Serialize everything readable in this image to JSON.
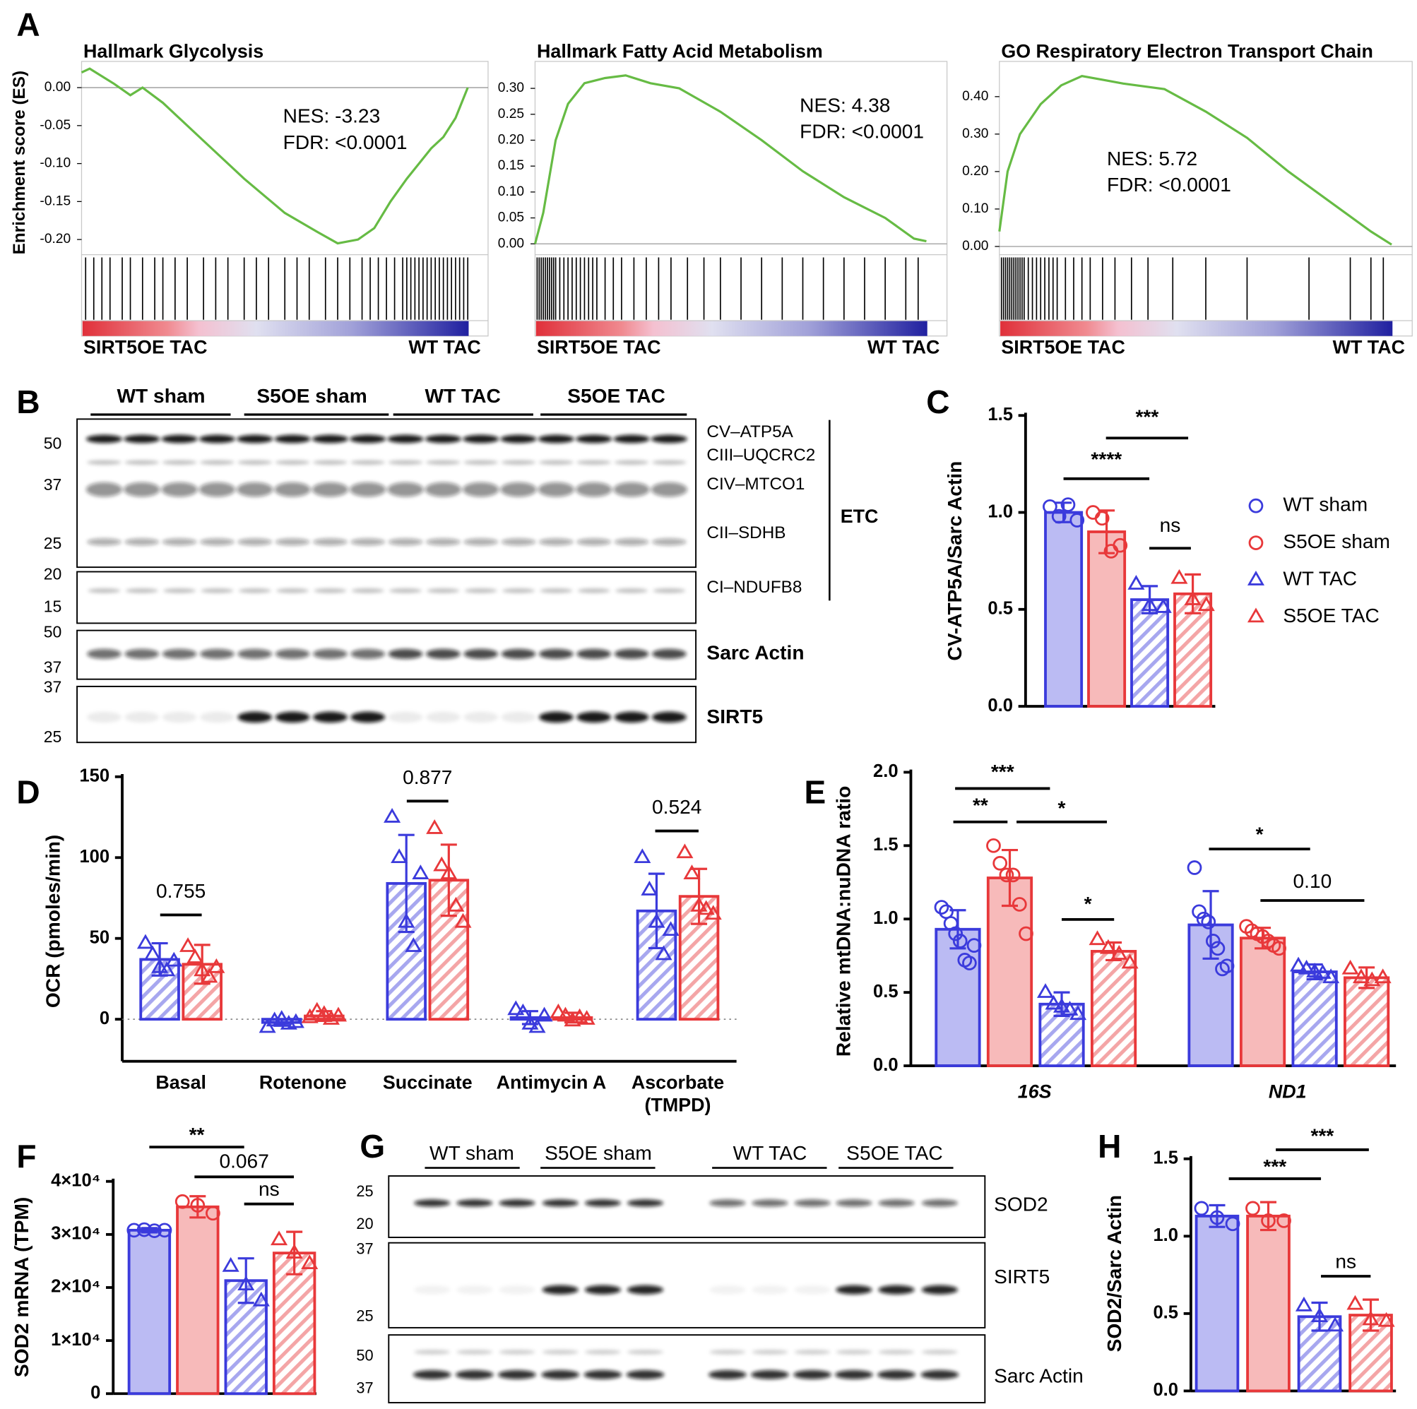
{
  "panel_labels": [
    "A",
    "B",
    "C",
    "D",
    "E",
    "F",
    "G",
    "H"
  ],
  "chart_data": [
    {
      "type": "gsea",
      "title": "Hallmark Glycolysis",
      "y_label": "Enrichment score (ES)",
      "annotations": [
        "NES: -3.23",
        "FDR: <0.0001"
      ],
      "left_label": "SIRT5OE TAC",
      "right_label": "WT TAC",
      "color": "#66bb44",
      "xlim": [
        0,
        1
      ],
      "ylim": [
        -0.22,
        0.0345
      ],
      "yticks": [
        {
          "value": 0,
          "label": "0.00"
        },
        {
          "value": -0.05,
          "label": "-0.05"
        },
        {
          "value": -0.1,
          "label": "-0.10"
        },
        {
          "value": -0.15,
          "label": "-0.15"
        },
        {
          "value": -0.2,
          "label": "-0.20"
        }
      ],
      "x": [
        0,
        0.02,
        0.08,
        0.12,
        0.15,
        0.2,
        0.3,
        0.4,
        0.5,
        0.58,
        0.63,
        0.68,
        0.72,
        0.76,
        0.8,
        0.83,
        0.86,
        0.89,
        0.92,
        0.95
      ],
      "values": [
        0.02,
        0.025,
        0.005,
        -0.01,
        0.0,
        -0.02,
        -0.07,
        -0.12,
        -0.165,
        -0.19,
        -0.205,
        -0.2,
        -0.185,
        -0.15,
        -0.12,
        -0.1,
        -0.08,
        -0.065,
        -0.04,
        0.0
      ],
      "hits": [
        0.01,
        0.03,
        0.05,
        0.07,
        0.1,
        0.12,
        0.15,
        0.18,
        0.2,
        0.23,
        0.26,
        0.3,
        0.33,
        0.36,
        0.4,
        0.43,
        0.46,
        0.5,
        0.53,
        0.56,
        0.6,
        0.63,
        0.66,
        0.69,
        0.71,
        0.73,
        0.75,
        0.77,
        0.79,
        0.8,
        0.81,
        0.82,
        0.83,
        0.84,
        0.85,
        0.86,
        0.87,
        0.88,
        0.89,
        0.9,
        0.91,
        0.92,
        0.93,
        0.94,
        0.95
      ]
    },
    {
      "type": "gsea",
      "title": "Hallmark Fatty Acid Metabolism",
      "annotations": [
        "NES: 4.38",
        "FDR: <0.0001"
      ],
      "left_label": "SIRT5OE TAC",
      "right_label": "WT TAC",
      "color": "#66bb44",
      "xlim": [
        0,
        1
      ],
      "ylim": [
        -0.021,
        0.352
      ],
      "yticks": [
        {
          "value": 0.3,
          "label": "0.30"
        },
        {
          "value": 0.25,
          "label": "0.25"
        },
        {
          "value": 0.2,
          "label": "0.20"
        },
        {
          "value": 0.15,
          "label": "0.15"
        },
        {
          "value": 0.1,
          "label": "0.10"
        },
        {
          "value": 0.05,
          "label": "0.05"
        },
        {
          "value": 0,
          "label": "0.00"
        }
      ],
      "x": [
        0,
        0.02,
        0.05,
        0.08,
        0.12,
        0.17,
        0.22,
        0.28,
        0.35,
        0.45,
        0.55,
        0.65,
        0.75,
        0.85,
        0.92,
        0.95
      ],
      "values": [
        0.0,
        0.06,
        0.2,
        0.27,
        0.31,
        0.32,
        0.325,
        0.31,
        0.3,
        0.255,
        0.2,
        0.14,
        0.09,
        0.05,
        0.01,
        0.005
      ],
      "hits": [
        0.005,
        0.01,
        0.015,
        0.02,
        0.025,
        0.03,
        0.035,
        0.04,
        0.045,
        0.05,
        0.06,
        0.07,
        0.08,
        0.09,
        0.1,
        0.11,
        0.12,
        0.13,
        0.14,
        0.15,
        0.17,
        0.19,
        0.21,
        0.24,
        0.27,
        0.3,
        0.33,
        0.37,
        0.41,
        0.45,
        0.5,
        0.55,
        0.6,
        0.65,
        0.7,
        0.75,
        0.8,
        0.85,
        0.9,
        0.93
      ]
    },
    {
      "type": "gsea",
      "title": "GO Respiratory Electron Transport Chain",
      "annotations": [
        "NES: 5.72",
        "FDR: <0.0001"
      ],
      "left_label": "SIRT5OE TAC",
      "right_label": "WT TAC",
      "color": "#66bb44",
      "xlim": [
        0,
        1
      ],
      "ylim": [
        -0.022,
        0.494
      ],
      "yticks": [
        {
          "value": 0.4,
          "label": "0.40"
        },
        {
          "value": 0.3,
          "label": "0.30"
        },
        {
          "value": 0.2,
          "label": "0.20"
        },
        {
          "value": 0.1,
          "label": "0.10"
        },
        {
          "value": 0,
          "label": "0.00"
        }
      ],
      "x": [
        0,
        0.02,
        0.05,
        0.1,
        0.15,
        0.2,
        0.25,
        0.3,
        0.4,
        0.5,
        0.6,
        0.7,
        0.8,
        0.9,
        0.95
      ],
      "values": [
        0.04,
        0.2,
        0.3,
        0.38,
        0.43,
        0.455,
        0.445,
        0.435,
        0.42,
        0.36,
        0.29,
        0.2,
        0.12,
        0.04,
        0.005
      ],
      "hits": [
        0.005,
        0.01,
        0.015,
        0.02,
        0.025,
        0.03,
        0.035,
        0.04,
        0.045,
        0.05,
        0.055,
        0.06,
        0.07,
        0.08,
        0.09,
        0.1,
        0.11,
        0.12,
        0.13,
        0.14,
        0.16,
        0.18,
        0.2,
        0.22,
        0.25,
        0.28,
        0.32,
        0.36,
        0.42,
        0.5,
        0.6,
        0.75,
        0.85,
        0.9,
        0.93
      ]
    },
    {
      "type": "bar",
      "y_label": "CV-ATP5A/Sarc Actin",
      "ylim": [
        0,
        1.5
      ],
      "yticks": [
        {
          "value": 0,
          "label": "0.0"
        },
        {
          "value": 0.5,
          "label": "0.5"
        },
        {
          "value": 1,
          "label": "1.0"
        },
        {
          "value": 1.5,
          "label": "1.5"
        }
      ],
      "legend": "right",
      "annotations": [
        "****",
        "***",
        "ns"
      ],
      "series": [
        {
          "name": "WT sham",
          "color": "#3b3bdc",
          "marker": "circle",
          "hatched": false,
          "values": [
            1.0
          ],
          "errors": [
            0.05
          ],
          "points": [
            [
              1.03,
              0.98,
              1.04,
              0.96
            ]
          ]
        },
        {
          "name": "S5OE sham",
          "color": "#e8383a",
          "marker": "circle",
          "hatched": false,
          "values": [
            0.9
          ],
          "errors": [
            0.11
          ],
          "points": [
            [
              1.0,
              0.97,
              0.8,
              0.83
            ]
          ]
        },
        {
          "name": "WT TAC",
          "color": "#3b3bdc",
          "marker": "triangle",
          "hatched": true,
          "values": [
            0.55
          ],
          "errors": [
            0.07
          ],
          "points": [
            [
              0.63,
              0.52,
              0.51
            ]
          ]
        },
        {
          "name": "S5OE TAC",
          "color": "#e8383a",
          "marker": "triangle",
          "hatched": true,
          "values": [
            0.58
          ],
          "errors": [
            0.1
          ],
          "points": [
            [
              0.66,
              0.55,
              0.52
            ]
          ]
        }
      ]
    },
    {
      "type": "bar",
      "y_label": "OCR (pmoles/min)",
      "ylim": [
        -26,
        150
      ],
      "yticks": [
        0,
        50,
        100,
        150
      ],
      "categories": [
        [
          "Basal"
        ],
        [
          "Rotenone"
        ],
        [
          "Succinate"
        ],
        [
          "Antimycin A"
        ],
        [
          "Ascorbate",
          "(TMPD)"
        ]
      ],
      "annotations": [
        "0.755",
        "0.877",
        "0.524"
      ],
      "series": [
        {
          "color": "#3b3bdc",
          "marker": "triangle",
          "hatched": true,
          "values": [
            37,
            -2,
            84,
            1,
            67
          ],
          "errors": [
            10,
            2,
            30,
            4,
            23
          ],
          "points": [
            [
              47,
              40,
              32,
              30,
              36
            ],
            [
              -5,
              -1,
              0,
              -3,
              -2
            ],
            [
              125,
              100,
              60,
              45,
              90
            ],
            [
              6,
              4,
              -3,
              -5,
              2
            ],
            [
              100,
              80,
              60,
              40,
              55
            ]
          ]
        },
        {
          "color": "#e8383a",
          "marker": "triangle",
          "hatched": true,
          "values": [
            34,
            2,
            86,
            1,
            76
          ],
          "errors": [
            12,
            3,
            22,
            3,
            17
          ],
          "points": [
            [
              45,
              38,
              30,
              26,
              32
            ],
            [
              1,
              5,
              3,
              0,
              2
            ],
            [
              118,
              95,
              90,
              70,
              60
            ],
            [
              4,
              2,
              -1,
              1,
              0
            ],
            [
              103,
              90,
              70,
              68,
              65
            ]
          ]
        }
      ]
    },
    {
      "type": "bar",
      "y_label": "Relative mtDNA:nuDNA ratio",
      "ylim": [
        0,
        2
      ],
      "yticks": [
        {
          "value": 0,
          "label": "0.0"
        },
        {
          "value": 0.5,
          "label": "0.5"
        },
        {
          "value": 1,
          "label": "1.0"
        },
        {
          "value": 1.5,
          "label": "1.5"
        },
        {
          "value": 2,
          "label": "2.0"
        }
      ],
      "categories": [
        [
          "16S"
        ],
        [
          "ND1"
        ]
      ],
      "annotations": [
        "***",
        "**",
        "*",
        "*",
        "*",
        "0.10"
      ],
      "series": [
        {
          "color": "#3b3bdc",
          "marker": "circle",
          "hatched": false,
          "values": [
            0.93,
            0.96
          ],
          "errors": [
            0.13,
            0.23
          ],
          "points": [
            [
              1.08,
              1.05,
              0.97,
              0.9,
              0.85,
              0.72,
              0.7,
              0.82
            ],
            [
              1.35,
              1.05,
              1.0,
              0.98,
              0.85,
              0.8,
              0.66,
              0.68
            ]
          ]
        },
        {
          "color": "#e8383a",
          "marker": "circle",
          "hatched": false,
          "values": [
            1.28,
            0.87
          ],
          "errors": [
            0.19,
            0.07
          ],
          "points": [
            [
              1.5,
              1.38,
              1.3,
              1.3,
              1.1,
              0.9
            ],
            [
              0.95,
              0.92,
              0.9,
              0.88,
              0.85,
              0.82,
              0.8
            ]
          ]
        },
        {
          "color": "#3b3bdc",
          "marker": "triangle",
          "hatched": true,
          "values": [
            0.42,
            0.64
          ],
          "errors": [
            0.08,
            0.05
          ],
          "points": [
            [
              0.5,
              0.42,
              0.4,
              0.38,
              0.35
            ],
            [
              0.68,
              0.66,
              0.64,
              0.63,
              0.6
            ]
          ]
        },
        {
          "color": "#e8383a",
          "marker": "triangle",
          "hatched": true,
          "values": [
            0.78,
            0.6
          ],
          "errors": [
            0.06,
            0.07
          ],
          "points": [
            [
              0.86,
              0.8,
              0.76,
              0.7
            ],
            [
              0.66,
              0.6,
              0.58,
              0.6
            ]
          ]
        }
      ]
    },
    {
      "type": "bar",
      "y_label": "SOD2 mRNA (TPM)",
      "ylim": [
        0,
        40000
      ],
      "yticks": [
        0,
        {
          "value": 10000,
          "label": "1×10⁴"
        },
        {
          "value": 20000,
          "label": "2×10⁴"
        },
        {
          "value": 30000,
          "label": "3×10⁴"
        },
        {
          "value": 40000,
          "label": "4×10⁴"
        }
      ],
      "annotations": [
        "**",
        "0.067",
        "ns"
      ],
      "series": [
        {
          "color": "#3b3bdc",
          "marker": "circle",
          "hatched": false,
          "values": [
            30800
          ],
          "errors": [
            400
          ],
          "points": [
            [
              30800,
              30900,
              30700,
              30800
            ]
          ]
        },
        {
          "color": "#e8383a",
          "marker": "circle",
          "hatched": false,
          "values": [
            35200
          ],
          "errors": [
            2000
          ],
          "points": [
            [
              36200,
              35500,
              34000
            ]
          ]
        },
        {
          "color": "#3b3bdc",
          "marker": "triangle",
          "hatched": true,
          "values": [
            21300
          ],
          "errors": [
            4200
          ],
          "points": [
            [
              24000,
              20500,
              17500
            ]
          ]
        },
        {
          "color": "#e8383a",
          "marker": "triangle",
          "hatched": true,
          "values": [
            26500
          ],
          "errors": [
            4000
          ],
          "points": [
            [
              29000,
              26500,
              24500
            ]
          ]
        }
      ]
    },
    {
      "type": "bar",
      "y_label": "SOD2/Sarc Actin",
      "ylim": [
        0,
        1.5
      ],
      "yticks": [
        {
          "value": 0,
          "label": "0.0"
        },
        {
          "value": 0.5,
          "label": "0.5"
        },
        {
          "value": 1,
          "label": "1.0"
        },
        {
          "value": 1.5,
          "label": "1.5"
        }
      ],
      "annotations": [
        "***",
        "***",
        "ns"
      ],
      "series": [
        {
          "color": "#3b3bdc",
          "marker": "circle",
          "hatched": false,
          "values": [
            1.13
          ],
          "errors": [
            0.07
          ],
          "points": [
            [
              1.18,
              1.12,
              1.08
            ]
          ]
        },
        {
          "color": "#e8383a",
          "marker": "circle",
          "hatched": false,
          "values": [
            1.13
          ],
          "errors": [
            0.09
          ],
          "points": [
            [
              1.18,
              1.1,
              1.1
            ]
          ]
        },
        {
          "color": "#3b3bdc",
          "marker": "triangle",
          "hatched": true,
          "values": [
            0.48
          ],
          "errors": [
            0.09
          ],
          "points": [
            [
              0.55,
              0.48,
              0.42
            ]
          ]
        },
        {
          "color": "#e8383a",
          "marker": "triangle",
          "hatched": true,
          "values": [
            0.49
          ],
          "errors": [
            0.1
          ],
          "points": [
            [
              0.56,
              0.46,
              0.45
            ]
          ]
        }
      ]
    }
  ],
  "blots": [
    {
      "groups": [
        "WT sham",
        "S5OE sham",
        "WT TAC",
        "S5OE TAC"
      ],
      "band_labels": [
        "CV–ATP5A",
        "CIII–UQCRC2",
        "CIV–MTCO1",
        "CII–SDHB",
        "CI–NDUFB8"
      ],
      "bracket_label": "ETC",
      "sarc_label": "Sarc Actin",
      "sirt5_label": "SIRT5",
      "markers": [
        "50",
        "37",
        "25",
        "20",
        "15",
        "50",
        "37",
        "37",
        "25"
      ]
    },
    {
      "groups": [
        "WT sham",
        "S5OE sham",
        "WT TAC",
        "S5OE TAC"
      ],
      "band_labels": [
        "SOD2",
        "SIRT5",
        "Sarc Actin"
      ],
      "markers": [
        "25",
        "20",
        "37",
        "25",
        "50",
        "37"
      ]
    }
  ]
}
